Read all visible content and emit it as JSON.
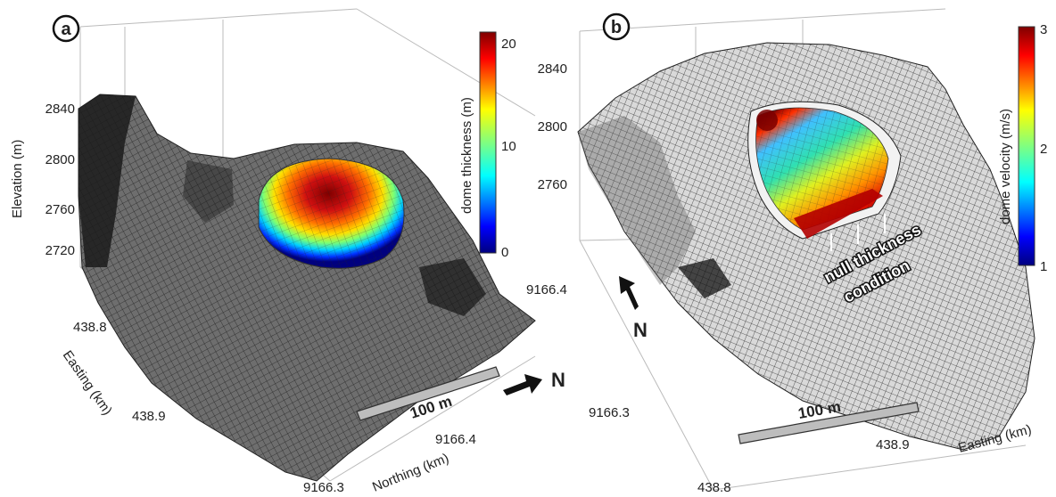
{
  "panel_a": {
    "label": "a",
    "z_label": "Elevation (m)",
    "z_ticks": [
      "2840",
      "2800",
      "2760",
      "2720"
    ],
    "easting_label": "Easting (km)",
    "easting_ticks": [
      "438.8",
      "438.9"
    ],
    "northing_label": "Northing (km)",
    "northing_ticks": [
      "9166.3",
      "9166.4"
    ],
    "colorbar_label": "dome thickness (m)",
    "colorbar_ticks": [
      "20",
      "10",
      "0"
    ],
    "scale_bar_label": "100 m",
    "north_label": "N"
  },
  "panel_b": {
    "label": "b",
    "z_ticks": [
      "2840",
      "2800",
      "2760"
    ],
    "northing_ticks": [
      "9166.4",
      "9166.3"
    ],
    "easting_label": "Easting (km)",
    "easting_ticks": [
      "438.9",
      "438.8"
    ],
    "colorbar_label": "dome velocity (m/s)",
    "colorbar_ticks": [
      "3",
      "2",
      "1"
    ],
    "annotation_line1": "null thickness",
    "annotation_line2": "condition",
    "scale_bar_label": "100 m",
    "north_label": "N"
  },
  "colors": {
    "jet": [
      "#00007f",
      "#0000ff",
      "#0080ff",
      "#00ffff",
      "#80ff80",
      "#ffff00",
      "#ff8000",
      "#ff0000",
      "#7f0000"
    ],
    "terrain": "#6b6b6b"
  }
}
